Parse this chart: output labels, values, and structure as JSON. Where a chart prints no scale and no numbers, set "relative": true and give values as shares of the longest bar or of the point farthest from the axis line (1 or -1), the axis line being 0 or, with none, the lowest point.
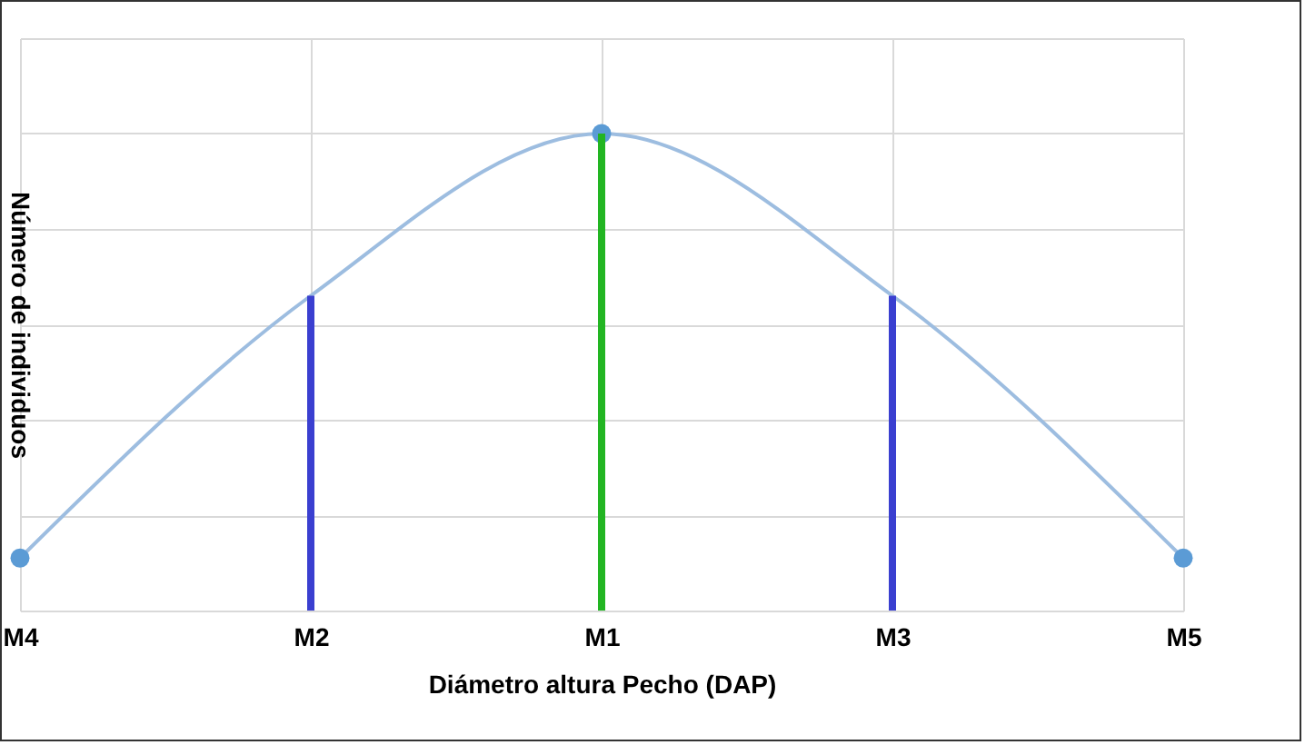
{
  "chart_data": {
    "type": "line",
    "relative": true,
    "xlabel": "Diámetro altura Pecho (DAP)",
    "ylabel": "Número de individuos",
    "categories": [
      "M4",
      "M2",
      "M1",
      "M3",
      "M5"
    ],
    "grid": true,
    "series": [
      {
        "color": "#9dbde0",
        "marker": "none",
        "values": [
          0.11,
          0.66,
          1,
          0.66,
          0.11
        ]
      },
      {
        "type": "bar",
        "colors": [
          null,
          "#3a3fd0",
          "#22b522",
          "#3a3fd0",
          null
        ],
        "values": [
          null,
          0.66,
          1,
          0.66,
          null
        ]
      },
      {
        "type": "scatter",
        "color": "#5b9bd5",
        "marker": "circle",
        "values": [
          0.11,
          null,
          1,
          null,
          0.11
        ]
      }
    ]
  }
}
